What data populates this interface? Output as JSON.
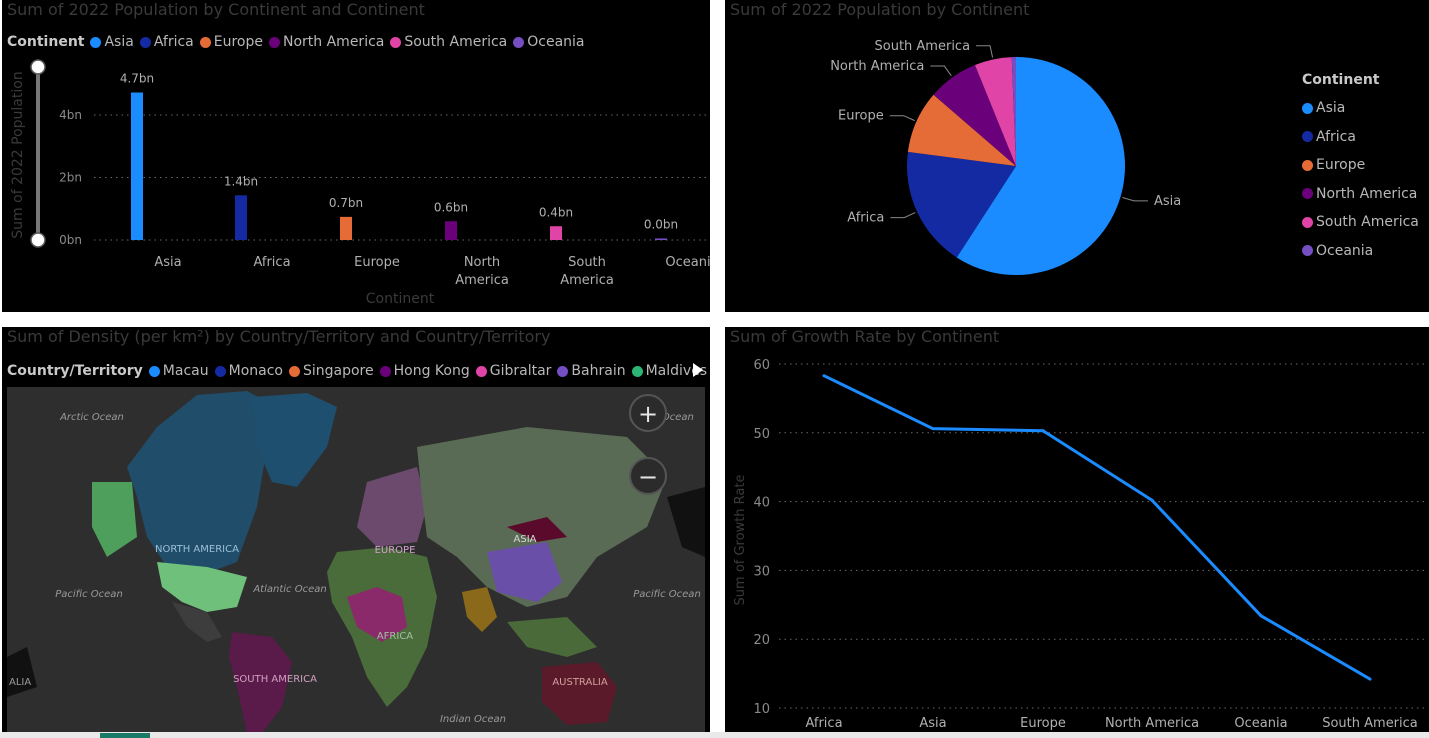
{
  "colors": {
    "asia": "#1a8cff",
    "africa": "#142aa3",
    "europe": "#e66c37",
    "north_america": "#6b007b",
    "south_america": "#e044a7",
    "oceania": "#744ec2",
    "maldives": "#2bb673",
    "line": "#1a8cff"
  },
  "bar_panel": {
    "title": "Sum of 2022 Population by Continent and Continent",
    "legend_title": "Continent",
    "legend": [
      "Asia",
      "Africa",
      "Europe",
      "North America",
      "South America",
      "Oceania"
    ]
  },
  "pie_panel": {
    "title": "Sum of 2022 Population by Continent",
    "legend_title": "Continent",
    "legend": [
      "Asia",
      "Africa",
      "Europe",
      "North America",
      "South America",
      "Oceania"
    ]
  },
  "map_panel": {
    "title": "Sum of Density (per km²) by Country/Territory and Country/Territory",
    "legend_title": "Country/Territory",
    "legend": [
      "Macau",
      "Monaco",
      "Singapore",
      "Hong Kong",
      "Gibraltar",
      "Bahrain",
      "Maldives"
    ],
    "map_labels": {
      "arctic": "Arctic Ocean",
      "arctic_right": "Arctic Ocean",
      "north_america": "NORTH AMERICA",
      "europe": "EUROPE",
      "asia": "ASIA",
      "atlantic": "Atlantic Ocean",
      "pacific_left": "Pacific Ocean",
      "pacific_right": "Pacific Ocean",
      "africa": "AFRICA",
      "south_america": "SOUTH AMERICA",
      "australia": "AUSTRALIA",
      "indian": "Indian Ocean",
      "alia": "ALIA"
    },
    "zoom_in_icon": "plus-icon",
    "zoom_out_icon": "minus-icon"
  },
  "line_panel": {
    "title": "Sum of Growth Rate by Continent"
  },
  "chart_data": [
    {
      "type": "bar",
      "title": "Sum of 2022 Population by Continent and Continent",
      "xlabel": "Continent",
      "ylabel": "Sum of 2022 Population",
      "categories": [
        "Asia",
        "Africa",
        "Europe",
        "North America",
        "South America",
        "Oceania"
      ],
      "values": [
        4.72,
        1.43,
        0.74,
        0.6,
        0.44,
        0.05
      ],
      "data_labels": [
        "4.7bn",
        "1.4bn",
        "0.7bn",
        "0.6bn",
        "0.4bn",
        "0.0bn"
      ],
      "yticks": [
        "0bn",
        "2bn",
        "4bn"
      ],
      "ylim": [
        0,
        5
      ],
      "grid": true
    },
    {
      "type": "pie",
      "title": "Sum of 2022 Population by Continent",
      "categories": [
        "Asia",
        "Africa",
        "Europe",
        "North America",
        "South America",
        "Oceania"
      ],
      "values": [
        4.72,
        1.43,
        0.74,
        0.6,
        0.44,
        0.05
      ],
      "legend": "right"
    },
    {
      "type": "line",
      "title": "Sum of Growth Rate by Continent",
      "ylabel": "Sum of Growth Rate",
      "categories": [
        "Africa",
        "Asia",
        "Europe",
        "North America",
        "Oceania",
        "South America"
      ],
      "values": [
        58.3,
        50.6,
        50.3,
        40.2,
        23.4,
        14.2
      ],
      "yticks": [
        "10",
        "20",
        "30",
        "40",
        "50",
        "60"
      ],
      "ylim": [
        10,
        60
      ],
      "grid": true
    }
  ]
}
